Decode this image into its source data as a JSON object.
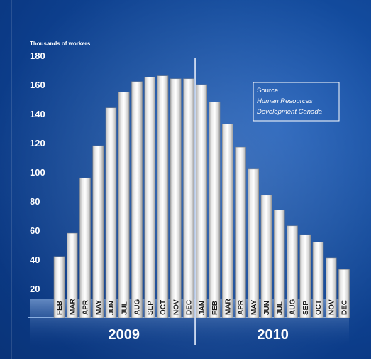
{
  "chart_data": {
    "type": "bar",
    "ylabel": "Thousands of workers",
    "ylim": [
      0,
      180
    ],
    "yticks": [
      20,
      40,
      60,
      80,
      100,
      120,
      140,
      160,
      180
    ],
    "categories": [
      "FEB",
      "MAR",
      "APR",
      "MAY",
      "JUN",
      "JUL",
      "AUG",
      "SEP",
      "OCT",
      "NOV",
      "DEC",
      "JAN",
      "FEB",
      "MAR",
      "APR",
      "MAY",
      "JUN",
      "JUL",
      "AUG",
      "SEP",
      "OCT",
      "NOV",
      "DEC"
    ],
    "values": [
      42,
      58,
      96,
      118,
      144,
      155,
      162,
      165,
      166,
      164,
      164,
      160,
      148,
      133,
      117,
      102,
      84,
      74,
      63,
      57,
      52,
      41,
      33
    ],
    "year_groups": [
      {
        "label": "2009",
        "span": [
          0,
          10
        ]
      },
      {
        "label": "2010",
        "span": [
          11,
          22
        ]
      }
    ],
    "source": {
      "prefix": "Source:",
      "line1": "Human Resources",
      "line2": "Development Canada"
    },
    "colors": {
      "background": "#0f4596",
      "bar_light": "#ffffff",
      "bar_shade": "#a8a8a8",
      "text": "#ffffff"
    }
  }
}
